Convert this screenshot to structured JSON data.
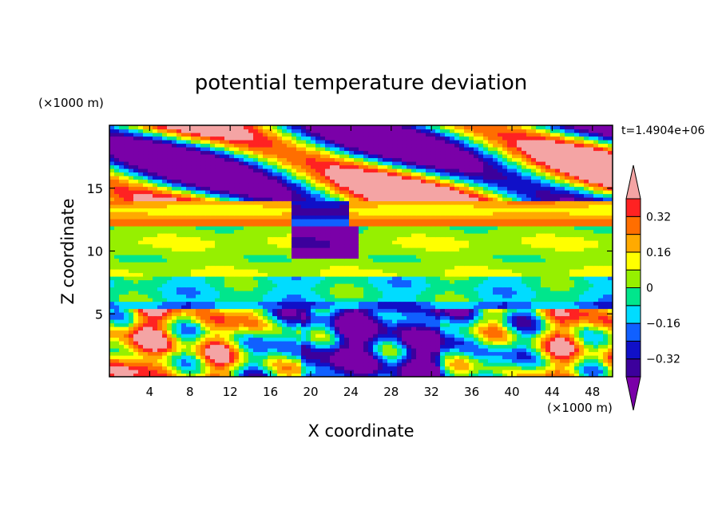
{
  "chart_data": {
    "type": "heatmap",
    "title": "potential temperature deviation",
    "xlabel": "X coordinate",
    "ylabel": "Z coordinate",
    "x_unit": "(×1000 m)",
    "y_unit": "(×1000 m)",
    "time_label": "t=1.4904e+06",
    "xlim": [
      0,
      50
    ],
    "ylim": [
      0,
      20
    ],
    "x_ticks": [
      4,
      8,
      12,
      16,
      20,
      24,
      28,
      32,
      36,
      40,
      44,
      48
    ],
    "y_ticks": [
      5,
      10,
      15
    ],
    "colorbar": {
      "levels": [
        -0.4,
        -0.32,
        -0.24,
        -0.16,
        -0.08,
        0,
        0.08,
        0.16,
        0.24,
        0.32,
        0.4
      ],
      "labels": [
        "0.32",
        "0.16",
        "0",
        "−0.16",
        "−0.32"
      ],
      "label_values": [
        0.32,
        0.16,
        0,
        -0.16,
        -0.32
      ],
      "colors": [
        "#7a00a8",
        "#3c009c",
        "#1010c8",
        "#1060ff",
        "#00dcff",
        "#00e68c",
        "#96f000",
        "#ffff00",
        "#ffaa00",
        "#ff6e00",
        "#ff2222",
        "#f4a4a4"
      ],
      "extend": "both"
    },
    "layers": [
      {
        "z_range": [
          0,
          5.3
        ],
        "description": "lower layer, strongly mixed, values from -0.4 to 0.4"
      },
      {
        "z_range": [
          5.3,
          8
        ],
        "description": "near 0 to -0.16, cyan/green bands"
      },
      {
        "z_range": [
          8,
          12
        ],
        "description": "0 to 0.16, green/yellow bands"
      },
      {
        "z_range": [
          12,
          14
        ],
        "description": "0.16 to 0.32, orange bands"
      },
      {
        "z_range": [
          14,
          20
        ],
        "description": "alternating < -0.4 and > 0.4 regions"
      }
    ]
  }
}
